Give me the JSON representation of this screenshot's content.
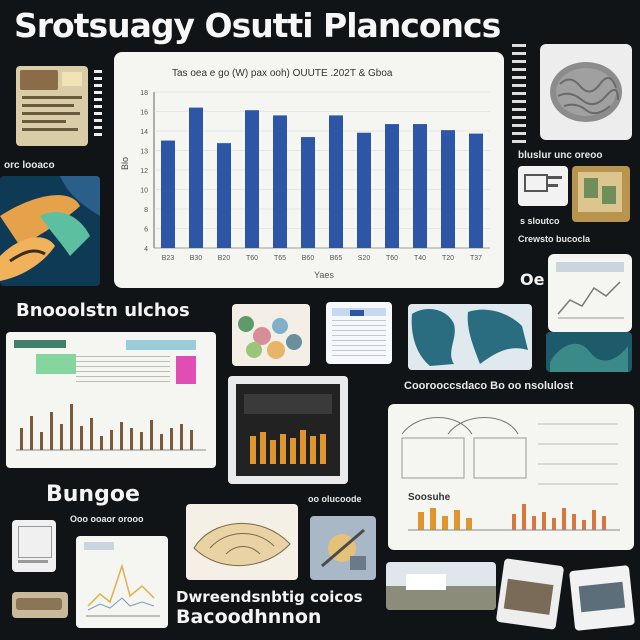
{
  "title": "Srotsuagy Osutti Planconcs",
  "headings": {
    "left_mid": "Bnooolstn ulchos",
    "left_lower": "Bungoe",
    "bottom_1": "Dwreendsnbtig coicos",
    "bottom_2": "Bacoodhnnon"
  },
  "captions": {
    "caption_right_1": "bluslur unc oreoo",
    "caption_right_2": "s sloutco",
    "caption_right_3": "Crewsto bucocla",
    "caption_mid_right": "Coorooccsdaco Bo oo nsolulost",
    "caption_left_1": "orc looaco",
    "caption_lower_small": "Ooo ooaor orooo",
    "caption_bottom_mid": "oo olucoode",
    "caption_panel_3": "Soosuhe",
    "caption_panel_4": "Oe"
  },
  "chart_data": {
    "type": "bar",
    "title": "Tas oea e go (W) pax ooh) OUUTE .202T & Gboa",
    "xlabel": "Yaes",
    "ylabel": "Blo",
    "categories": [
      "B23",
      "B30",
      "B20",
      "T60",
      "T65",
      "B60",
      "B65",
      "S20",
      "T60",
      "T40",
      "T20",
      "T37"
    ],
    "values": [
      12.4,
      16.2,
      12.1,
      15.9,
      15.3,
      12.8,
      15.3,
      13.3,
      14.3,
      14.3,
      13.6,
      13.2
    ],
    "yticks": [
      "18",
      "16",
      "14",
      "13",
      "12",
      "10",
      "8",
      "6",
      "4"
    ],
    "ylim": [
      0,
      18
    ],
    "grid": true,
    "bar_color": "#2d57a6"
  },
  "colors": {
    "background": "#111416",
    "panel": "#f5f6f2",
    "bar": "#2d57a6",
    "teal": "#2b6d80",
    "orange": "#e0962f"
  }
}
